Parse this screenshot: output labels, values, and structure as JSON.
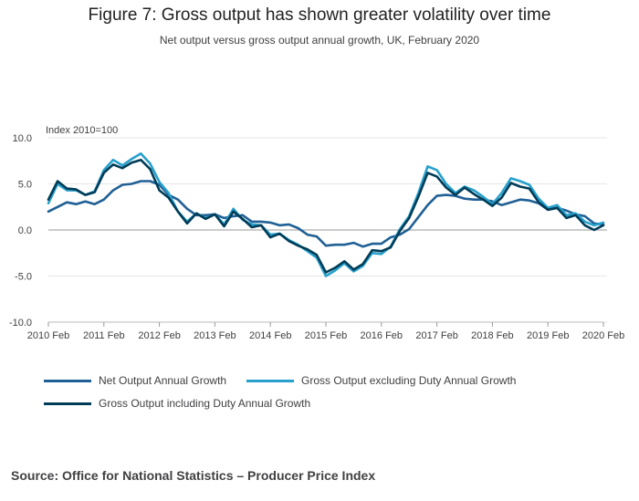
{
  "title": "Figure 7: Gross output has shown greater volatility over time",
  "subtitle": "Net output versus gross output annual growth, UK, February 2020",
  "source": "Source: Office for National Statistics – Producer Price Index",
  "colors": {
    "net": "#206095",
    "gross_ex": "#27a0cc",
    "gross_inc": "#003c57",
    "grid": "#e6e6e6",
    "zero": "#999999"
  },
  "chart_data": {
    "type": "line",
    "ylabel": "Index 2010=100",
    "ylim": [
      -10,
      10
    ],
    "yticks": [
      "10.0",
      "5.0",
      "0.0",
      "-5.0",
      "-10.0"
    ],
    "ytick_values": [
      10,
      5,
      0,
      -5,
      -10
    ],
    "xticks": [
      "2010 Feb",
      "2011 Feb",
      "2012 Feb",
      "2013 Feb",
      "2014 Feb",
      "2015 Feb",
      "2016 Feb",
      "2017 Feb",
      "2018 Feb",
      "2019 Feb",
      "2020 Feb"
    ],
    "x_start": "2010 Feb",
    "x_end": "2020 Feb",
    "grid": true,
    "legend_position": "bottom",
    "series": [
      {
        "name": "Net Output Annual Growth",
        "color": "#206095",
        "anchors": [
          [
            "2010 Feb",
            2.0
          ],
          [
            "2010 Jun",
            3.0
          ],
          [
            "2010 Aug",
            2.8
          ],
          [
            "2010 Oct",
            3.1
          ],
          [
            "2010 Dec",
            2.8
          ],
          [
            "2011 Feb",
            3.3
          ],
          [
            "2011 Apr",
            4.3
          ],
          [
            "2011 Jun",
            4.9
          ],
          [
            "2011 Aug",
            5.0
          ],
          [
            "2011 Oct",
            5.3
          ],
          [
            "2011 Dec",
            5.3
          ],
          [
            "2012 Feb",
            4.9
          ],
          [
            "2012 Apr",
            3.8
          ],
          [
            "2012 Jun",
            3.3
          ],
          [
            "2012 Aug",
            2.3
          ],
          [
            "2012 Oct",
            1.6
          ],
          [
            "2012 Dec",
            1.6
          ],
          [
            "2013 Feb",
            1.7
          ],
          [
            "2013 Apr",
            1.3
          ],
          [
            "2013 Jun",
            1.5
          ],
          [
            "2013 Aug",
            1.6
          ],
          [
            "2013 Oct",
            0.9
          ],
          [
            "2013 Dec",
            0.9
          ],
          [
            "2014 Feb",
            0.8
          ],
          [
            "2014 Apr",
            0.5
          ],
          [
            "2014 Jun",
            0.6
          ],
          [
            "2014 Aug",
            0.2
          ],
          [
            "2014 Oct",
            -0.5
          ],
          [
            "2014 Dec",
            -0.7
          ],
          [
            "2015 Feb",
            -1.7
          ],
          [
            "2015 Apr",
            -1.6
          ],
          [
            "2015 Jun",
            -1.6
          ],
          [
            "2015 Aug",
            -1.4
          ],
          [
            "2015 Oct",
            -1.8
          ],
          [
            "2015 Dec",
            -1.5
          ],
          [
            "2016 Feb",
            -1.5
          ],
          [
            "2016 Apr",
            -0.8
          ],
          [
            "2016 Jun",
            -0.5
          ],
          [
            "2016 Aug",
            0.1
          ],
          [
            "2016 Oct",
            1.4
          ],
          [
            "2016 Dec",
            2.7
          ],
          [
            "2017 Feb",
            3.7
          ],
          [
            "2017 Apr",
            3.8
          ],
          [
            "2017 Jun",
            3.7
          ],
          [
            "2017 Aug",
            3.4
          ],
          [
            "2017 Oct",
            3.3
          ],
          [
            "2017 Dec",
            3.3
          ],
          [
            "2018 Feb",
            3.1
          ],
          [
            "2018 Apr",
            2.7
          ],
          [
            "2018 Jun",
            3.0
          ],
          [
            "2018 Aug",
            3.3
          ],
          [
            "2018 Oct",
            3.2
          ],
          [
            "2018 Dec",
            2.9
          ],
          [
            "2019 Feb",
            2.2
          ],
          [
            "2019 Apr",
            2.4
          ],
          [
            "2019 Jun",
            2.1
          ],
          [
            "2019 Aug",
            1.7
          ],
          [
            "2019 Oct",
            1.5
          ],
          [
            "2019 Dec",
            0.7
          ],
          [
            "2020 Feb",
            0.6
          ]
        ]
      },
      {
        "name": "Gross Output excluding Duty Annual Growth",
        "color": "#27a0cc",
        "anchors": [
          [
            "2010 Feb",
            2.9
          ],
          [
            "2010 Apr",
            5.0
          ],
          [
            "2010 Jun",
            4.3
          ],
          [
            "2010 Aug",
            4.3
          ],
          [
            "2010 Oct",
            3.8
          ],
          [
            "2010 Dec",
            4.2
          ],
          [
            "2011 Feb",
            6.5
          ],
          [
            "2011 Apr",
            7.6
          ],
          [
            "2011 Jun",
            7.0
          ],
          [
            "2011 Aug",
            7.7
          ],
          [
            "2011 Oct",
            8.3
          ],
          [
            "2011 Dec",
            7.2
          ],
          [
            "2012 Feb",
            5.2
          ],
          [
            "2012 Apr",
            4.0
          ],
          [
            "2012 Jun",
            2.0
          ],
          [
            "2012 Aug",
            0.9
          ],
          [
            "2012 Oct",
            1.8
          ],
          [
            "2012 Dec",
            1.3
          ],
          [
            "2013 Feb",
            1.7
          ],
          [
            "2013 Apr",
            0.6
          ],
          [
            "2013 Jun",
            2.3
          ],
          [
            "2013 Aug",
            1.1
          ],
          [
            "2013 Oct",
            0.6
          ],
          [
            "2013 Dec",
            0.5
          ],
          [
            "2014 Feb",
            -0.5
          ],
          [
            "2014 Apr",
            -0.4
          ],
          [
            "2014 Jun",
            -1.1
          ],
          [
            "2014 Aug",
            -1.6
          ],
          [
            "2014 Oct",
            -2.3
          ],
          [
            "2014 Dec",
            -3.0
          ],
          [
            "2015 Feb",
            -5.0
          ],
          [
            "2015 Apr",
            -4.4
          ],
          [
            "2015 Jun",
            -3.6
          ],
          [
            "2015 Aug",
            -4.5
          ],
          [
            "2015 Oct",
            -3.9
          ],
          [
            "2015 Dec",
            -2.5
          ],
          [
            "2016 Feb",
            -2.6
          ],
          [
            "2016 Apr",
            -1.8
          ],
          [
            "2016 Jun",
            0.1
          ],
          [
            "2016 Aug",
            1.5
          ],
          [
            "2016 Oct",
            4.0
          ],
          [
            "2016 Dec",
            6.9
          ],
          [
            "2017 Feb",
            6.5
          ],
          [
            "2017 Apr",
            5.0
          ],
          [
            "2017 Jun",
            4.0
          ],
          [
            "2017 Aug",
            4.7
          ],
          [
            "2017 Oct",
            4.3
          ],
          [
            "2017 Dec",
            3.6
          ],
          [
            "2018 Feb",
            2.8
          ],
          [
            "2018 Apr",
            4.0
          ],
          [
            "2018 Jun",
            5.6
          ],
          [
            "2018 Aug",
            5.3
          ],
          [
            "2018 Oct",
            4.9
          ],
          [
            "2018 Dec",
            3.4
          ],
          [
            "2019 Feb",
            2.4
          ],
          [
            "2019 Apr",
            2.7
          ],
          [
            "2019 Jun",
            1.6
          ],
          [
            "2019 Aug",
            1.8
          ],
          [
            "2019 Oct",
            0.9
          ],
          [
            "2019 Dec",
            0.5
          ],
          [
            "2020 Feb",
            0.8
          ]
        ]
      },
      {
        "name": "Gross Output including Duty Annual Growth",
        "color": "#003c57",
        "anchors": [
          [
            "2010 Feb",
            3.3
          ],
          [
            "2010 Apr",
            5.3
          ],
          [
            "2010 Jun",
            4.5
          ],
          [
            "2010 Aug",
            4.4
          ],
          [
            "2010 Oct",
            3.8
          ],
          [
            "2010 Dec",
            4.1
          ],
          [
            "2011 Feb",
            6.2
          ],
          [
            "2011 Apr",
            7.1
          ],
          [
            "2011 Jun",
            6.7
          ],
          [
            "2011 Aug",
            7.3
          ],
          [
            "2011 Oct",
            7.6
          ],
          [
            "2011 Dec",
            6.6
          ],
          [
            "2012 Feb",
            4.3
          ],
          [
            "2012 Apr",
            3.5
          ],
          [
            "2012 Jun",
            2.0
          ],
          [
            "2012 Aug",
            0.7
          ],
          [
            "2012 Oct",
            1.8
          ],
          [
            "2012 Dec",
            1.2
          ],
          [
            "2013 Feb",
            1.7
          ],
          [
            "2013 Apr",
            0.4
          ],
          [
            "2013 Jun",
            2.0
          ],
          [
            "2013 Aug",
            1.2
          ],
          [
            "2013 Oct",
            0.3
          ],
          [
            "2013 Dec",
            0.5
          ],
          [
            "2014 Feb",
            -0.8
          ],
          [
            "2014 Apr",
            -0.4
          ],
          [
            "2014 Jun",
            -1.2
          ],
          [
            "2014 Aug",
            -1.7
          ],
          [
            "2014 Oct",
            -2.1
          ],
          [
            "2014 Dec",
            -2.7
          ],
          [
            "2015 Feb",
            -4.6
          ],
          [
            "2015 Apr",
            -4.1
          ],
          [
            "2015 Jun",
            -3.4
          ],
          [
            "2015 Aug",
            -4.3
          ],
          [
            "2015 Oct",
            -3.7
          ],
          [
            "2015 Dec",
            -2.2
          ],
          [
            "2016 Feb",
            -2.3
          ],
          [
            "2016 Apr",
            -1.9
          ],
          [
            "2016 Jun",
            -0.1
          ],
          [
            "2016 Aug",
            1.3
          ],
          [
            "2016 Oct",
            3.6
          ],
          [
            "2016 Dec",
            6.2
          ],
          [
            "2017 Feb",
            5.8
          ],
          [
            "2017 Apr",
            4.6
          ],
          [
            "2017 Jun",
            3.8
          ],
          [
            "2017 Aug",
            4.6
          ],
          [
            "2017 Oct",
            3.9
          ],
          [
            "2017 Dec",
            3.3
          ],
          [
            "2018 Feb",
            2.6
          ],
          [
            "2018 Apr",
            3.5
          ],
          [
            "2018 Jun",
            5.1
          ],
          [
            "2018 Aug",
            4.7
          ],
          [
            "2018 Oct",
            4.5
          ],
          [
            "2018 Dec",
            3.0
          ],
          [
            "2019 Feb",
            2.2
          ],
          [
            "2019 Apr",
            2.4
          ],
          [
            "2019 Jun",
            1.3
          ],
          [
            "2019 Aug",
            1.6
          ],
          [
            "2019 Oct",
            0.5
          ],
          [
            "2019 Dec",
            0.0
          ],
          [
            "2020 Feb",
            0.5
          ]
        ]
      }
    ]
  }
}
